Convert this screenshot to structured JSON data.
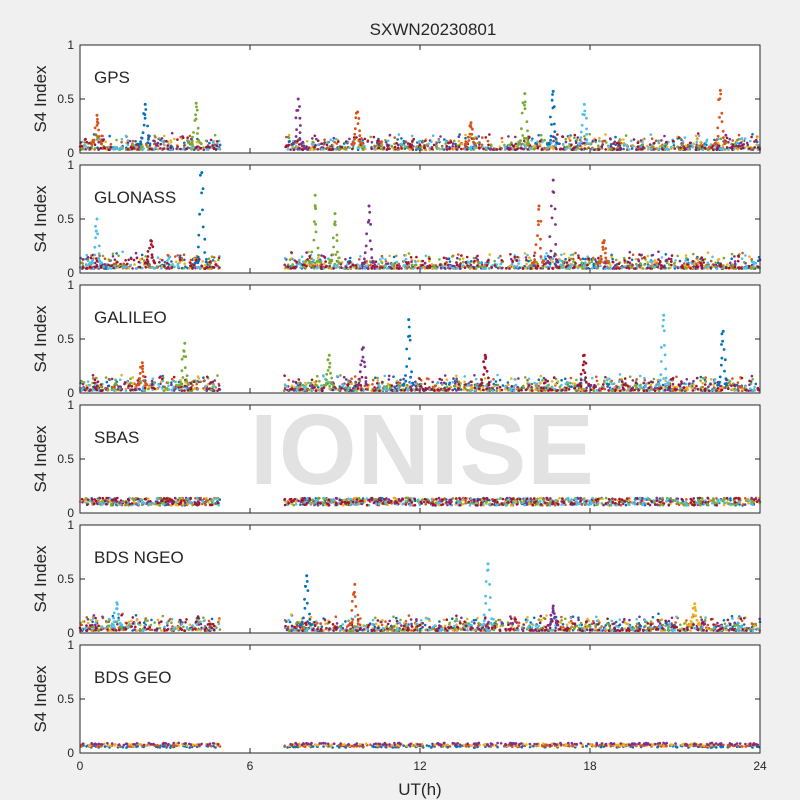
{
  "watermark": "IONISE",
  "chart_data": {
    "type": "scatter",
    "title": "SXWN20230801",
    "xlabel": "UT(h)",
    "ylabel": "S4 Index",
    "xlim": [
      0,
      24
    ],
    "ylim": [
      0,
      1
    ],
    "xticks": [
      "0",
      "6",
      "12",
      "18",
      "24"
    ],
    "yticks": [
      "0",
      "0.5",
      "1"
    ],
    "data_gap_hours": [
      5,
      7.2
    ],
    "colors": [
      "#0072BD",
      "#D95319",
      "#EDB120",
      "#7E2F8E",
      "#77AC30",
      "#4DBEEE",
      "#A2142F"
    ],
    "panels": [
      {
        "label": "GPS",
        "baseline": 0.08,
        "peaks": [
          {
            "x": 0.6,
            "y": 0.35,
            "c": 1
          },
          {
            "x": 2.3,
            "y": 0.45,
            "c": 0
          },
          {
            "x": 4.1,
            "y": 0.46,
            "c": 4
          },
          {
            "x": 7.7,
            "y": 0.5,
            "c": 3
          },
          {
            "x": 9.8,
            "y": 0.38,
            "c": 1
          },
          {
            "x": 13.8,
            "y": 0.28,
            "c": 1
          },
          {
            "x": 15.7,
            "y": 0.55,
            "c": 4
          },
          {
            "x": 16.7,
            "y": 0.57,
            "c": 0
          },
          {
            "x": 17.8,
            "y": 0.45,
            "c": 5
          },
          {
            "x": 22.6,
            "y": 0.58,
            "c": 1
          }
        ]
      },
      {
        "label": "GLONASS",
        "baseline": 0.09,
        "peaks": [
          {
            "x": 0.6,
            "y": 0.5,
            "c": 5
          },
          {
            "x": 2.5,
            "y": 0.3,
            "c": 6
          },
          {
            "x": 4.3,
            "y": 0.93,
            "c": 0
          },
          {
            "x": 8.3,
            "y": 0.72,
            "c": 4
          },
          {
            "x": 9.0,
            "y": 0.55,
            "c": 4
          },
          {
            "x": 10.2,
            "y": 0.62,
            "c": 3
          },
          {
            "x": 16.2,
            "y": 0.62,
            "c": 1
          },
          {
            "x": 16.7,
            "y": 0.86,
            "c": 3
          },
          {
            "x": 18.5,
            "y": 0.3,
            "c": 1
          }
        ]
      },
      {
        "label": "GALILEO",
        "baseline": 0.07,
        "peaks": [
          {
            "x": 2.2,
            "y": 0.28,
            "c": 1
          },
          {
            "x": 3.7,
            "y": 0.46,
            "c": 4
          },
          {
            "x": 8.8,
            "y": 0.35,
            "c": 4
          },
          {
            "x": 10.0,
            "y": 0.42,
            "c": 3
          },
          {
            "x": 11.6,
            "y": 0.68,
            "c": 0
          },
          {
            "x": 14.3,
            "y": 0.35,
            "c": 6
          },
          {
            "x": 17.8,
            "y": 0.35,
            "c": 6
          },
          {
            "x": 20.6,
            "y": 0.72,
            "c": 5
          },
          {
            "x": 22.7,
            "y": 0.57,
            "c": 0
          }
        ]
      },
      {
        "label": "SBAS",
        "baseline": 0.11,
        "peaks": []
      },
      {
        "label": "BDS NGEO",
        "baseline": 0.07,
        "peaks": [
          {
            "x": 1.3,
            "y": 0.28,
            "c": 5
          },
          {
            "x": 8.0,
            "y": 0.53,
            "c": 0
          },
          {
            "x": 9.7,
            "y": 0.45,
            "c": 1
          },
          {
            "x": 14.4,
            "y": 0.64,
            "c": 5
          },
          {
            "x": 16.7,
            "y": 0.25,
            "c": 3
          },
          {
            "x": 21.7,
            "y": 0.27,
            "c": 2
          }
        ]
      },
      {
        "label": "BDS GEO",
        "baseline": 0.07,
        "peaks": []
      }
    ]
  }
}
